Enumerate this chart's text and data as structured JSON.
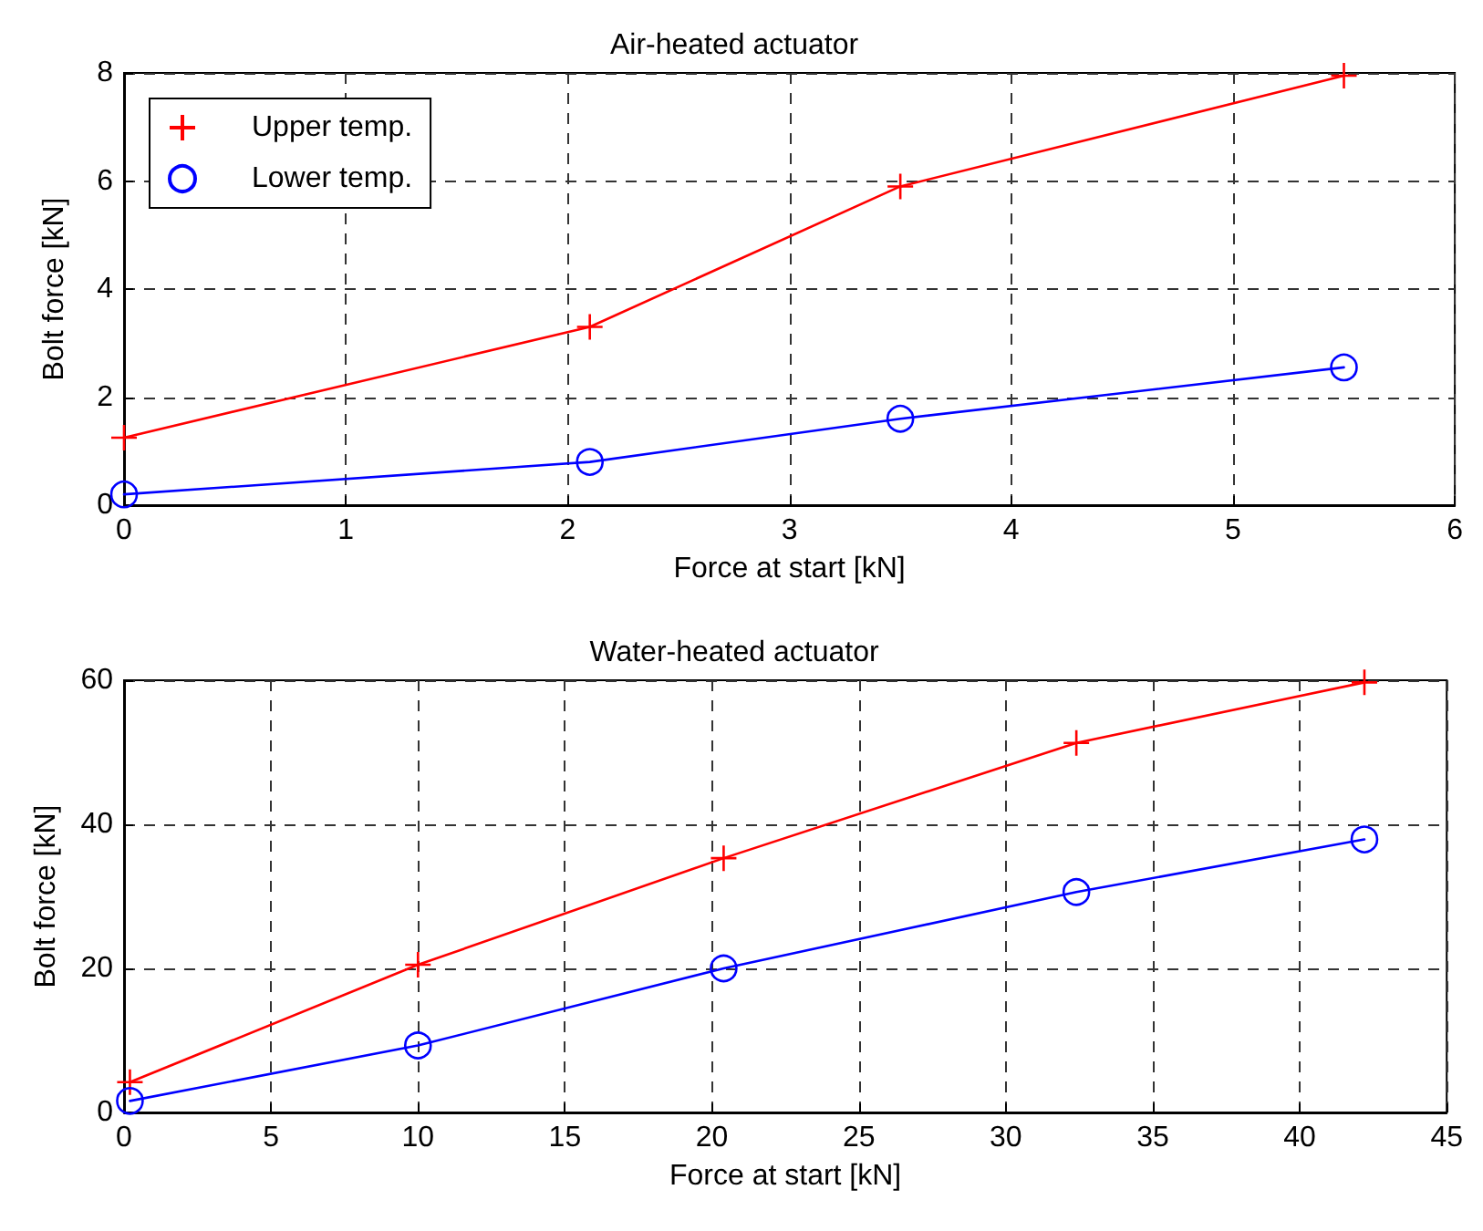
{
  "chart_data": [
    {
      "type": "line",
      "title": "Air-heated actuator",
      "xlabel": "Force at start [kN]",
      "ylabel": "Bolt force [kN]",
      "x": [
        0,
        2.1,
        3.5,
        5.5
      ],
      "series": [
        {
          "name": "Upper temp.",
          "color": "#ff0000",
          "marker": "cross",
          "values": [
            1.25,
            3.3,
            5.9,
            7.95
          ]
        },
        {
          "name": "Lower temp.",
          "color": "#0000ff",
          "marker": "circle",
          "values": [
            0.2,
            0.8,
            1.6,
            2.55
          ]
        }
      ],
      "xlim": [
        0,
        6
      ],
      "xticks": [
        0,
        1,
        2,
        3,
        4,
        5,
        6
      ],
      "ylim": [
        0,
        8
      ],
      "yticks": [
        0,
        2,
        4,
        6,
        8
      ],
      "grid": true,
      "legend": "top left",
      "line_style": "solid"
    },
    {
      "type": "line",
      "title": "Water-heated actuator",
      "xlabel": "Force at start [kN]",
      "ylabel": "Bolt force [kN]",
      "x": [
        0.2,
        10,
        20.4,
        32.4,
        42.2
      ],
      "series": [
        {
          "color": "#ff0000",
          "marker": "cross",
          "values": [
            4.2,
            20.5,
            35.3,
            51.3,
            59.7
          ]
        },
        {
          "color": "#0000ff",
          "marker": "circle",
          "values": [
            1.6,
            9.3,
            20,
            30.6,
            37.9
          ]
        }
      ],
      "xlim": [
        0,
        45
      ],
      "xticks": [
        0,
        5,
        10,
        15,
        20,
        25,
        30,
        35,
        40,
        45
      ],
      "ylim": [
        0,
        60
      ],
      "yticks": [
        0,
        20,
        40,
        60
      ],
      "grid": true,
      "legend": false,
      "line_style": "solid"
    }
  ]
}
